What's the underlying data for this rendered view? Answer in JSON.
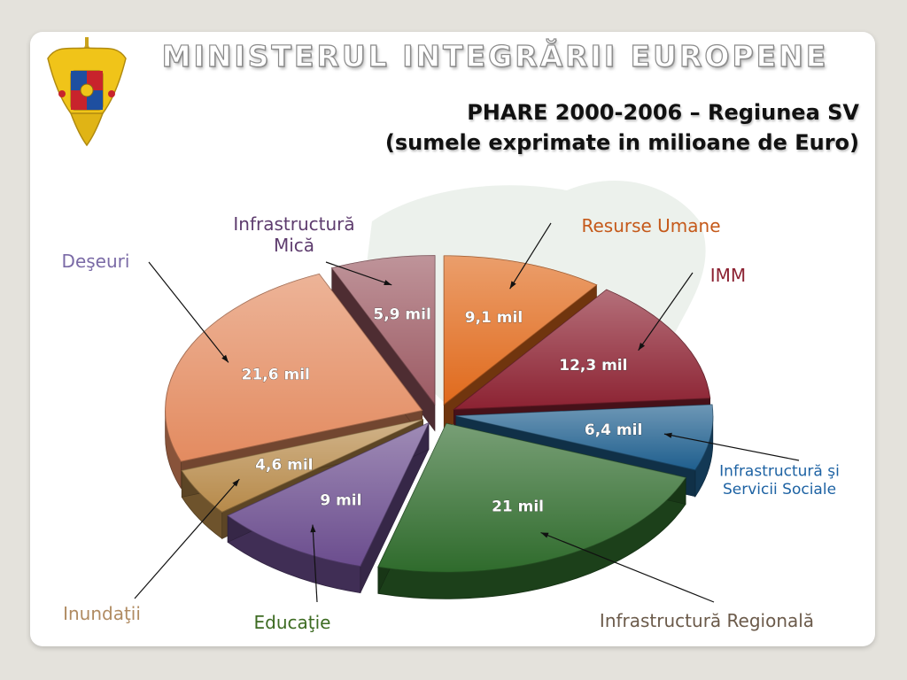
{
  "header": {
    "organization": "MINISTERUL INTEGRĂRII EUROPENE",
    "title_line1": "PHARE 2000-2006 – Regiunea SV",
    "title_line2": "(sumele exprimate in milioane de Euro)"
  },
  "crest": {
    "icon": "romanian-coat-of-arms-icon"
  },
  "chart_data": {
    "type": "pie",
    "title": "PHARE 2000-2006 – Regiunea SV",
    "subtitle": "(sumele exprimate in milioane de Euro)",
    "legend": "none",
    "slices": [
      {
        "label": "Resurse Umane",
        "value": 9.1,
        "value_label": "9,1 mil",
        "color": "#e06a1c",
        "label_color": "#c5591a"
      },
      {
        "label": "IMM",
        "value": 12.3,
        "value_label": "12,3 mil",
        "color": "#8c2232",
        "label_color": "#8c2232"
      },
      {
        "label": "Infrastructură şi Servicii Sociale",
        "line1": "Infrastructură şi",
        "line2": "Servicii Sociale",
        "value": 6.4,
        "value_label": "6,4 mil",
        "color": "#1f5f8e",
        "label_color": "#1d62a3"
      },
      {
        "label": "Infrastructură Regională",
        "value": 21.0,
        "value_label": "21 mil",
        "color": "#2f6b2c",
        "label_color": "#6b5a4a"
      },
      {
        "label": "Educaţie",
        "value": 9.0,
        "value_label": "9 mil",
        "color": "#6b4d8e",
        "label_color": "#3d6b22"
      },
      {
        "label": "Inundaţii",
        "value": 4.6,
        "value_label": "4,6 mil",
        "color": "#b78a4a",
        "label_color": "#b08b62"
      },
      {
        "label": "Deşeuri",
        "value": 21.6,
        "value_label": "21,6 mil",
        "color": "#e38b60",
        "label_color": "#7a6aa6"
      },
      {
        "label": "Infrastructură Mică",
        "line1": "Infrastructură",
        "line2": "Mică",
        "value": 5.9,
        "value_label": "5,9 mil",
        "color": "#9c5a63",
        "label_color": "#5e3c6e"
      }
    ]
  }
}
